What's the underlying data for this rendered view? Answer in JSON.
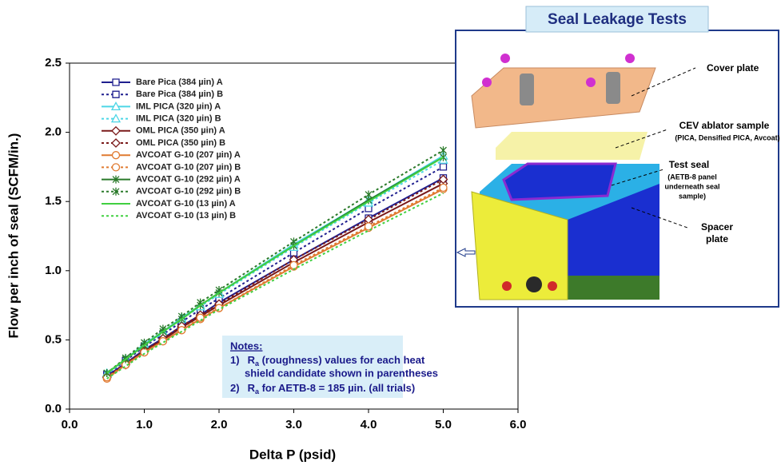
{
  "chart_data": {
    "type": "line",
    "xlabel": "Delta P (psid)",
    "ylabel": "Flow per inch of seal (SCFM/in.)",
    "xlim": [
      0,
      6
    ],
    "ylim": [
      0,
      2.5
    ],
    "xticks": [
      {
        "value": 0,
        "label": "0.0"
      },
      {
        "value": 1,
        "label": "1.0"
      },
      {
        "value": 2,
        "label": "2.0"
      },
      {
        "value": 3,
        "label": "3.0"
      },
      {
        "value": 4,
        "label": "4.0"
      },
      {
        "value": 5,
        "label": "5.0"
      },
      {
        "value": 6,
        "label": "6.0"
      }
    ],
    "yticks": [
      {
        "value": 0,
        "label": "0.0"
      },
      0.5,
      {
        "value": 1,
        "label": "1.0"
      },
      1.5,
      {
        "value": 2,
        "label": "2.0"
      },
      2.5
    ],
    "x": [
      0.5,
      0.75,
      1,
      1.25,
      1.5,
      1.75,
      2,
      3,
      4,
      5
    ],
    "series": [
      {
        "name": "Bare Pica (384 µin) A",
        "color": "#1f1f8f",
        "marker": "square",
        "dash": false,
        "values": [
          0.24,
          0.33,
          0.43,
          0.51,
          0.6,
          0.68,
          0.77,
          1.08,
          1.38,
          1.67
        ]
      },
      {
        "name": "Bare Pica (384 µin) B",
        "color": "#1f1f8f",
        "marker": "square",
        "dash": true,
        "values": [
          0.25,
          0.35,
          0.45,
          0.54,
          0.63,
          0.72,
          0.8,
          1.13,
          1.45,
          1.75
        ]
      },
      {
        "name": "IML PICA (320 µin) A",
        "color": "#4dd6e6",
        "marker": "triangle",
        "dash": false,
        "values": [
          0.26,
          0.36,
          0.47,
          0.56,
          0.66,
          0.75,
          0.84,
          1.19,
          1.51,
          1.83
        ]
      },
      {
        "name": "IML PICA (320 µin) B",
        "color": "#4dd6e6",
        "marker": "triangle",
        "dash": true,
        "values": [
          0.25,
          0.36,
          0.46,
          0.55,
          0.65,
          0.74,
          0.83,
          1.17,
          1.49,
          1.8
        ]
      },
      {
        "name": "OML PICA (350 µin) A",
        "color": "#7a1a1a",
        "marker": "diamond",
        "dash": false,
        "values": [
          0.23,
          0.32,
          0.42,
          0.5,
          0.59,
          0.67,
          0.75,
          1.06,
          1.35,
          1.63
        ]
      },
      {
        "name": "OML PICA (350 µin) B",
        "color": "#7a1a1a",
        "marker": "diamond",
        "dash": true,
        "values": [
          0.23,
          0.33,
          0.42,
          0.51,
          0.6,
          0.68,
          0.76,
          1.08,
          1.37,
          1.66
        ]
      },
      {
        "name": "AVCOAT G-10 (207 µin) A",
        "color": "#e07a30",
        "marker": "circle",
        "dash": false,
        "values": [
          0.22,
          0.32,
          0.41,
          0.49,
          0.57,
          0.65,
          0.73,
          1.03,
          1.31,
          1.59
        ]
      },
      {
        "name": "AVCOAT G-10 (207 µin) B",
        "color": "#e07a30",
        "marker": "circle",
        "dash": true,
        "values": [
          0.23,
          0.32,
          0.41,
          0.49,
          0.57,
          0.66,
          0.73,
          1.04,
          1.32,
          1.6
        ]
      },
      {
        "name": "AVCOAT G-10 (292 µin) A",
        "color": "#2a7a2a",
        "marker": "asterisk",
        "dash": false,
        "values": [
          0.26,
          0.36,
          0.46,
          0.56,
          0.65,
          0.75,
          0.84,
          1.18,
          1.51,
          1.82
        ]
      },
      {
        "name": "AVCOAT G-10 (292 µin) B",
        "color": "#2a7a2a",
        "marker": "asterisk",
        "dash": true,
        "values": [
          0.26,
          0.37,
          0.48,
          0.58,
          0.67,
          0.77,
          0.86,
          1.21,
          1.55,
          1.87
        ]
      },
      {
        "name": "AVCOAT G-10 (13 µin) A",
        "color": "#40d040",
        "marker": "none",
        "dash": false,
        "values": [
          0.26,
          0.36,
          0.46,
          0.56,
          0.65,
          0.75,
          0.84,
          1.18,
          1.5,
          1.82
        ]
      },
      {
        "name": "AVCOAT G-10 (13 µin) B",
        "color": "#40d040",
        "marker": "none",
        "dash": true,
        "values": [
          0.22,
          0.31,
          0.4,
          0.48,
          0.56,
          0.64,
          0.72,
          1.01,
          1.29,
          1.56
        ]
      }
    ],
    "notes": {
      "heading": "Notes:",
      "items": [
        {
          "num": "1)",
          "symbol": "R",
          "subscript": "a",
          "text": " (roughness) values for each heat",
          "text2": "shield candidate shown in parentheses"
        },
        {
          "num": "2)",
          "symbol": "R",
          "subscript": "a",
          "text": " for AETB-8 = 185 µin. (all trials)"
        }
      ]
    }
  },
  "diagram": {
    "title": "Seal Leakage Tests",
    "labels": {
      "cover": "Cover plate",
      "sample": "CEV ablator sample",
      "sample_note": "(PICA, Densified PICA, Avcoat)",
      "seal": "Test seal",
      "seal_note1": "(AETB-8 panel",
      "seal_note2": "underneath seal",
      "seal_note3": "sample)",
      "spacer1": "Spacer",
      "spacer2": "plate"
    }
  }
}
